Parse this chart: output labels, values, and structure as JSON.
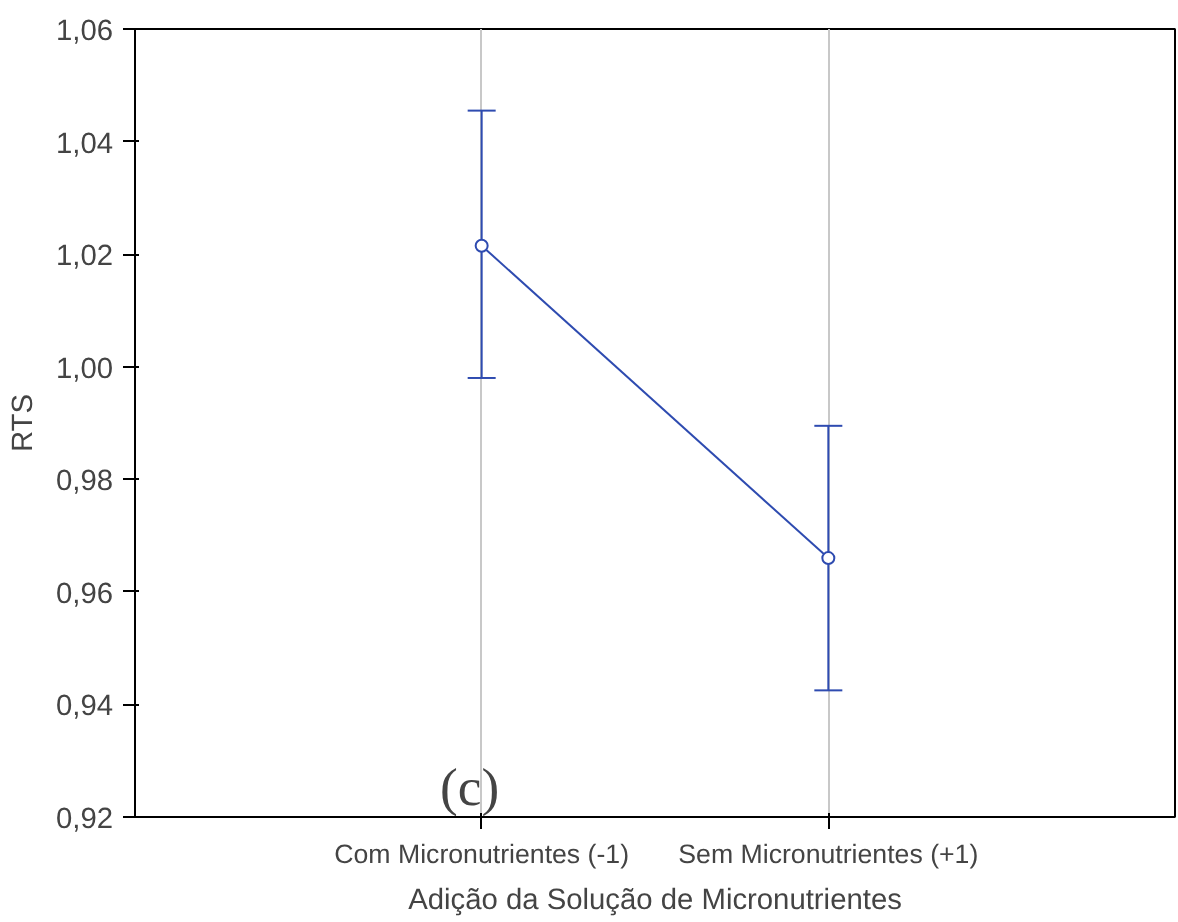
{
  "chart_data": {
    "type": "line",
    "xlabel": "Adição da Solução de Micronutrientes",
    "ylabel": "RTS",
    "categories": [
      "Com Micronutrientes (-1)",
      "Sem Micronutrientes (+1)"
    ],
    "series": [
      {
        "color": "#2e4bb0",
        "values": [
          1.0215,
          0.966
        ],
        "errors": [
          [
            0.998,
            1.0455
          ],
          [
            0.9425,
            0.9895
          ]
        ]
      }
    ],
    "ylim": [
      0.92,
      1.06
    ],
    "yticks": [
      {
        "value": 0.92,
        "label": "0,92"
      },
      {
        "value": 0.94,
        "label": "0,94"
      },
      {
        "value": 0.96,
        "label": "0,96"
      },
      {
        "value": 0.98,
        "label": "0,98"
      },
      {
        "value": 1.0,
        "label": "1,00"
      },
      {
        "value": 1.02,
        "label": "1,02"
      },
      {
        "value": 1.04,
        "label": "1,04"
      },
      {
        "value": 1.06,
        "label": "1,06"
      }
    ],
    "grid": "x",
    "marker": "circle",
    "line_style": "solid",
    "annotations": [
      "(c)"
    ]
  }
}
